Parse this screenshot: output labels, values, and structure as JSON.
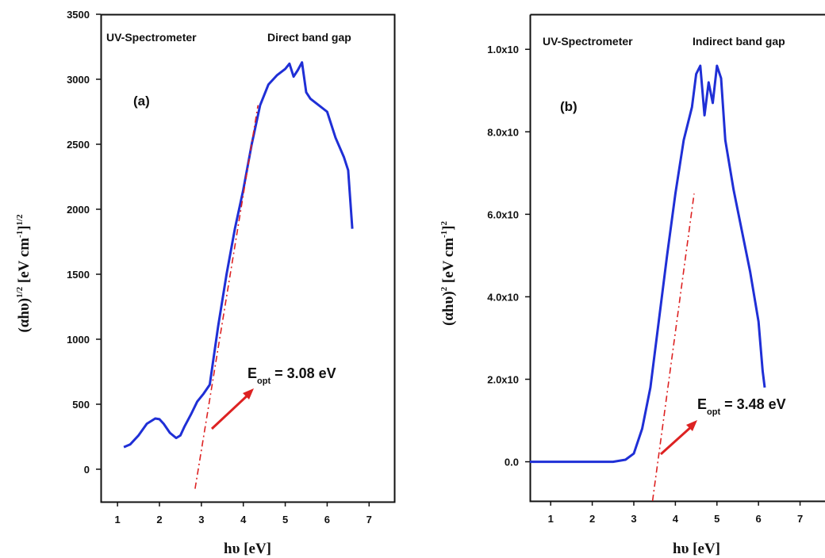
{
  "chart_data": [
    {
      "type": "line",
      "panel_label": "(a)",
      "annotations": [
        "UV-Spectrometer",
        "Direct band gap"
      ],
      "xlabel": "hυ [eV]",
      "ylabel": "(αhυ)^1/2 [eV cm^-1]^1/2",
      "ylabel_main": "(αhυ)",
      "ylabel_sup1": "1/2",
      "ylabel_unit": "[eV cm",
      "ylabel_sup2": "-1",
      "ylabel_close": "]",
      "ylabel_sup3": "1/2",
      "xlim": [
        0.6,
        7.6
      ],
      "ylim": [
        -250,
        3500
      ],
      "xticks": [
        1,
        2,
        3,
        4,
        5,
        6,
        7
      ],
      "yticks": [
        0,
        500,
        1000,
        1500,
        2000,
        2500,
        3000,
        3500
      ],
      "band_gap_label": "E",
      "band_gap_sub": "opt",
      "band_gap_value": " = 3.08 eV",
      "series": [
        {
          "color": "#1f2fd6",
          "x": [
            1.15,
            1.3,
            1.5,
            1.7,
            1.9,
            2.0,
            2.1,
            2.25,
            2.4,
            2.5,
            2.6,
            2.75,
            2.9,
            3.05,
            3.2,
            3.4,
            3.6,
            3.8,
            4.0,
            4.2,
            4.4,
            4.6,
            4.8,
            5.0,
            5.1,
            5.2,
            5.3,
            5.4,
            5.5,
            5.6,
            5.8,
            6.0,
            6.2,
            6.4,
            6.5,
            6.6
          ],
          "y": [
            170,
            190,
            260,
            350,
            390,
            385,
            350,
            280,
            240,
            260,
            330,
            420,
            520,
            580,
            650,
            1100,
            1500,
            1850,
            2150,
            2500,
            2800,
            2960,
            3030,
            3080,
            3120,
            3020,
            3070,
            3130,
            2900,
            2850,
            2800,
            2750,
            2550,
            2400,
            2300,
            1850
          ]
        },
        {
          "type": "dash-dot",
          "color": "#dd2222",
          "x": [
            2.85,
            4.35
          ],
          "y": [
            -150,
            2800
          ]
        }
      ]
    },
    {
      "type": "line",
      "panel_label": "(b)",
      "annotations": [
        "UV-Spectrometer",
        "Indirect band gap"
      ],
      "xlabel": "hυ [eV]",
      "ylabel": "(αhυ)^2 [eV cm^-1]^2",
      "ylabel_main": "(αhυ)",
      "ylabel_sup1": "2",
      "ylabel_unit": "[eV cm",
      "ylabel_sup2": "-1",
      "ylabel_close": "]",
      "ylabel_sup3": "2",
      "xlim": [
        0.5,
        7.6
      ],
      "ylim": [
        -0.95,
        10.85
      ],
      "xticks": [
        1,
        2,
        3,
        4,
        5,
        6,
        7
      ],
      "yticks": [
        0,
        2,
        4,
        6,
        8,
        10
      ],
      "ytick_labels": [
        "0.0",
        "2.0x10",
        "4.0x10",
        "6.0x10",
        "8.0x10",
        "1.0x10"
      ],
      "band_gap_label": "E",
      "band_gap_sub": "opt",
      "band_gap_value": " = 3.48 eV",
      "series": [
        {
          "color": "#1f2fd6",
          "x": [
            0.5,
            2.5,
            2.8,
            3.0,
            3.2,
            3.4,
            3.6,
            3.8,
            4.0,
            4.2,
            4.4,
            4.5,
            4.6,
            4.7,
            4.8,
            4.9,
            5.0,
            5.1,
            5.2,
            5.4,
            5.6,
            5.8,
            6.0,
            6.1,
            6.15
          ],
          "y": [
            0,
            0,
            0.05,
            0.2,
            0.8,
            1.8,
            3.4,
            5.0,
            6.5,
            7.8,
            8.6,
            9.4,
            9.6,
            8.4,
            9.2,
            8.7,
            9.6,
            9.3,
            7.8,
            6.6,
            5.6,
            4.6,
            3.4,
            2.2,
            1.8
          ]
        },
        {
          "type": "dash-dot",
          "color": "#dd2222",
          "x": [
            3.45,
            4.45
          ],
          "y": [
            -0.95,
            6.5
          ]
        }
      ]
    }
  ]
}
